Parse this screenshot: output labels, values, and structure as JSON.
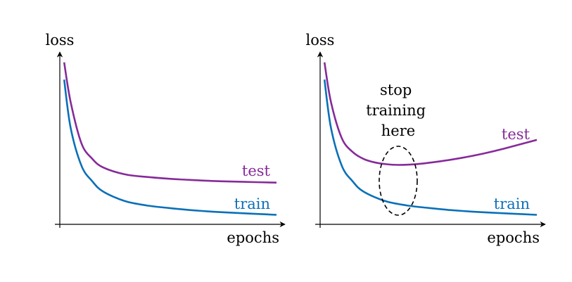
{
  "chart_data": [
    {
      "type": "line",
      "xlabel": "epochs",
      "ylabel": "loss",
      "grid": false,
      "colors": {
        "test": "#862a9a",
        "train": "#0a70b8",
        "axis": "#000000"
      },
      "series": [
        {
          "name": "test",
          "x": [
            0.02,
            0.05,
            0.1,
            0.15,
            0.2,
            0.3,
            0.4,
            0.5,
            0.6,
            0.7,
            0.8,
            0.9,
            1.0
          ],
          "values": [
            0.94,
            0.71,
            0.47,
            0.38,
            0.33,
            0.29,
            0.275,
            0.265,
            0.258,
            0.252,
            0.248,
            0.245,
            0.242
          ]
        },
        {
          "name": "train",
          "x": [
            0.02,
            0.05,
            0.1,
            0.15,
            0.2,
            0.3,
            0.4,
            0.5,
            0.6,
            0.7,
            0.8,
            0.9,
            1.0
          ],
          "values": [
            0.84,
            0.56,
            0.34,
            0.25,
            0.19,
            0.135,
            0.11,
            0.095,
            0.083,
            0.074,
            0.067,
            0.061,
            0.055
          ]
        }
      ]
    },
    {
      "type": "line",
      "xlabel": "epochs",
      "ylabel": "loss",
      "grid": false,
      "colors": {
        "test": "#862a9a",
        "train": "#0a70b8",
        "axis": "#000000"
      },
      "annotation": {
        "text": [
          "stop",
          "training",
          "here"
        ],
        "at_x": 0.36,
        "marker": "dashed-ellipse"
      },
      "series": [
        {
          "name": "test",
          "x": [
            0.02,
            0.05,
            0.1,
            0.15,
            0.2,
            0.25,
            0.3,
            0.36,
            0.45,
            0.55,
            0.65,
            0.75,
            0.85,
            1.0
          ],
          "values": [
            0.94,
            0.71,
            0.5,
            0.42,
            0.38,
            0.36,
            0.35,
            0.345,
            0.35,
            0.365,
            0.385,
            0.41,
            0.44,
            0.49
          ]
        },
        {
          "name": "train",
          "x": [
            0.02,
            0.05,
            0.1,
            0.15,
            0.2,
            0.3,
            0.4,
            0.5,
            0.6,
            0.7,
            0.8,
            0.9,
            1.0
          ],
          "values": [
            0.84,
            0.56,
            0.34,
            0.25,
            0.19,
            0.135,
            0.11,
            0.095,
            0.083,
            0.074,
            0.067,
            0.061,
            0.055
          ]
        }
      ]
    }
  ]
}
